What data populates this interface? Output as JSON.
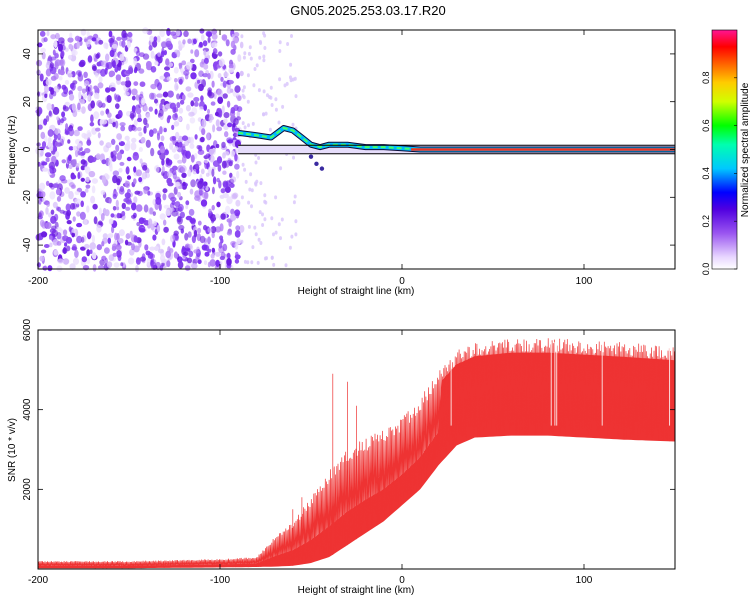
{
  "title": "GN05.2025.253.03.17.R20",
  "chart_data": [
    {
      "type": "heatmap",
      "xlabel": "Height of straight line (km)",
      "ylabel": "Frequency (Hz)",
      "xlim": [
        -200,
        150
      ],
      "ylim": [
        -50,
        50
      ],
      "xticks": [
        -200,
        -100,
        0,
        100
      ],
      "xtick_labels": [
        "-200",
        "-100",
        "0",
        "100"
      ],
      "yticks": [
        -40,
        -20,
        0,
        20,
        40
      ],
      "ytick_labels": [
        "-40",
        "-20",
        "0",
        "20",
        "40"
      ],
      "colorbar": {
        "label": "Normalized spectral amplitude",
        "range": [
          0,
          1
        ],
        "ticks": [
          0.0,
          0.2,
          0.4,
          0.6,
          0.8
        ],
        "tick_labels": [
          "0.0",
          "0.2",
          "0.4",
          "0.6",
          "0.8"
        ]
      },
      "features": {
        "noise_region_x": [
          -200,
          -88
        ],
        "dominant_line_x": [
          -90,
          150
        ],
        "dominant_line_freq_hz": 0,
        "ridge_points": [
          {
            "x": -90,
            "y": 7
          },
          {
            "x": -80,
            "y": 6
          },
          {
            "x": -72,
            "y": 5
          },
          {
            "x": -65,
            "y": 9
          },
          {
            "x": -60,
            "y": 8
          },
          {
            "x": -55,
            "y": 5
          },
          {
            "x": -50,
            "y": 2
          },
          {
            "x": -45,
            "y": 1
          },
          {
            "x": -40,
            "y": 2
          },
          {
            "x": -30,
            "y": 2
          },
          {
            "x": -20,
            "y": 1
          },
          {
            "x": -10,
            "y": 1
          },
          {
            "x": 0,
            "y": 0.5
          },
          {
            "x": 10,
            "y": 0
          },
          {
            "x": 150,
            "y": 0
          }
        ]
      }
    },
    {
      "type": "line",
      "xlabel": "Height of straight line (km)",
      "ylabel": "SNR (10 * v/v)",
      "xlim": [
        -200,
        150
      ],
      "ylim": [
        0,
        6000
      ],
      "xticks": [
        -200,
        -100,
        0,
        100
      ],
      "xtick_labels": [
        "-200",
        "-100",
        "0",
        "100"
      ],
      "yticks": [
        2000,
        4000,
        6000
      ],
      "ytick_labels": [
        "2000",
        "4000",
        "6000"
      ],
      "color": "#ee3333",
      "envelope": {
        "x": [
          -200,
          -150,
          -100,
          -80,
          -70,
          -60,
          -50,
          -40,
          -30,
          -20,
          -10,
          0,
          10,
          20,
          30,
          40,
          60,
          80,
          100,
          120,
          150
        ],
        "lower": [
          20,
          20,
          40,
          50,
          60,
          80,
          150,
          300,
          600,
          900,
          1200,
          1600,
          2000,
          2600,
          3100,
          3300,
          3350,
          3350,
          3300,
          3250,
          3200
        ],
        "upper": [
          200,
          200,
          250,
          300,
          800,
          1200,
          1800,
          2500,
          3000,
          3300,
          3500,
          3800,
          4300,
          5000,
          5500,
          5700,
          5800,
          5800,
          5750,
          5700,
          5600
        ]
      },
      "spikes": [
        {
          "x": -38,
          "y": 4900
        },
        {
          "x": -30,
          "y": 4700
        },
        {
          "x": -25,
          "y": 4100
        },
        {
          "x": -60,
          "y": 1500
        },
        {
          "x": -55,
          "y": 1800
        }
      ]
    }
  ]
}
